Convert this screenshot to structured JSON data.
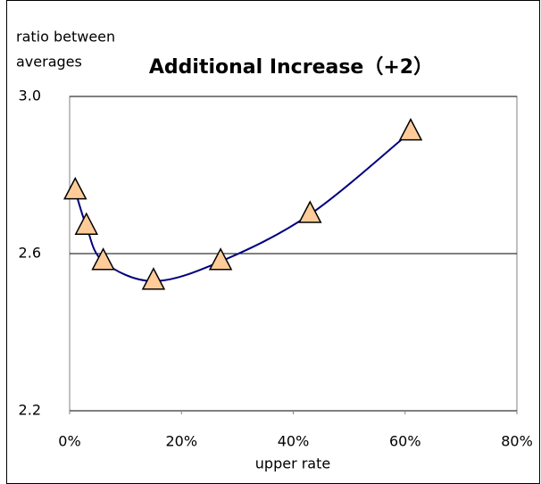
{
  "chart_data": {
    "type": "scatter",
    "title": "Additional Increase（+2）",
    "ylabel": [
      "ratio between",
      "averages"
    ],
    "xlabel": "upper rate",
    "series": [
      {
        "x": [
          1,
          3,
          6,
          15,
          27,
          43,
          61
        ],
        "values": [
          2.76,
          2.67,
          2.58,
          2.53,
          2.58,
          2.7,
          2.91
        ],
        "color": "#ffcc99",
        "line_color": "#000080",
        "smooth": true
      }
    ],
    "xlim": [
      0,
      80
    ],
    "xticks": [
      {
        "value": 0,
        "label": "0%"
      },
      {
        "value": 20,
        "label": "20%"
      },
      {
        "value": 40,
        "label": "40%"
      },
      {
        "value": 60,
        "label": "60%"
      },
      {
        "value": 80,
        "label": "80%"
      }
    ],
    "ylim": [
      2.2,
      3.0
    ],
    "yticks": [
      {
        "value": 2.2,
        "label": "2.2"
      },
      {
        "value": 2.6,
        "label": "2.6"
      },
      {
        "value": 3.0,
        "label": "3.0"
      }
    ],
    "grid": true
  }
}
